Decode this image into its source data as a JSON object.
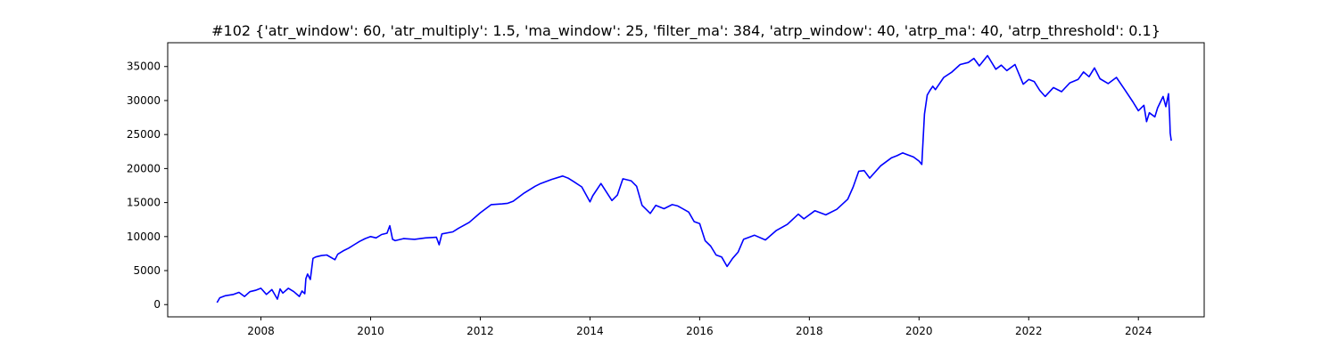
{
  "chart_data": {
    "type": "line",
    "title": "#102 {'atr_window': 60, 'atr_multiply': 1.5, 'ma_window': 25, 'filter_ma': 384, 'atrp_window': 40, 'atrp_ma': 40, 'atrp_threshold': 0.1}",
    "xlabel": "",
    "ylabel": "",
    "xlim": [
      2006.3,
      2025.2
    ],
    "ylim": [
      -1800,
      38500
    ],
    "x_ticks": [
      2008,
      2010,
      2012,
      2014,
      2016,
      2018,
      2020,
      2022,
      2024
    ],
    "y_ticks": [
      0,
      5000,
      10000,
      15000,
      20000,
      25000,
      30000,
      35000
    ],
    "grid": false,
    "legend": "none",
    "line_color": "#0000ff",
    "series": [
      {
        "x": [
          2007.2,
          2007.25,
          2007.35,
          2007.5,
          2007.6,
          2007.7,
          2007.8,
          2007.9,
          2008.0,
          2008.1,
          2008.2,
          2008.3,
          2008.35,
          2008.4,
          2008.5,
          2008.6,
          2008.7,
          2008.75,
          2008.8,
          2008.82,
          2008.85,
          2008.9,
          2008.95,
          2009.0,
          2009.1,
          2009.2,
          2009.35,
          2009.4,
          2009.5,
          2009.6,
          2009.7,
          2009.8,
          2009.9,
          2010.0,
          2010.1,
          2010.2,
          2010.3,
          2010.35,
          2010.4,
          2010.45,
          2010.6,
          2010.8,
          2011.0,
          2011.2,
          2011.25,
          2011.3,
          2011.5,
          2011.6,
          2011.8,
          2012.0,
          2012.2,
          2012.4,
          2012.5,
          2012.6,
          2012.8,
          2013.0,
          2013.1,
          2013.3,
          2013.5,
          2013.6,
          2013.7,
          2013.85,
          2014.0,
          2014.05,
          2014.2,
          2014.4,
          2014.5,
          2014.6,
          2014.75,
          2014.85,
          2014.95,
          2015.1,
          2015.2,
          2015.35,
          2015.5,
          2015.6,
          2015.8,
          2015.9,
          2016.0,
          2016.1,
          2016.2,
          2016.3,
          2016.4,
          2016.5,
          2016.6,
          2016.7,
          2016.8,
          2016.9,
          2017.0,
          2017.2,
          2017.4,
          2017.6,
          2017.8,
          2017.9,
          2018.1,
          2018.3,
          2018.5,
          2018.7,
          2018.8,
          2018.9,
          2019.0,
          2019.1,
          2019.3,
          2019.5,
          2019.6,
          2019.7,
          2019.9,
          2020.0,
          2020.05,
          2020.1,
          2020.15,
          2020.2,
          2020.25,
          2020.3,
          2020.45,
          2020.6,
          2020.75,
          2020.9,
          2021.0,
          2021.1,
          2021.25,
          2021.4,
          2021.5,
          2021.6,
          2021.75,
          2021.9,
          2022.0,
          2022.1,
          2022.2,
          2022.3,
          2022.45,
          2022.6,
          2022.75,
          2022.9,
          2023.0,
          2023.1,
          2023.2,
          2023.3,
          2023.45,
          2023.6,
          2023.75,
          2023.9,
          2024.0,
          2024.1,
          2024.15,
          2024.2,
          2024.3,
          2024.35,
          2024.45,
          2024.5,
          2024.55,
          2024.57,
          2024.58,
          2024.6
        ],
        "y": [
          300,
          1000,
          1300,
          1500,
          1800,
          1200,
          1900,
          2100,
          2400,
          1500,
          2200,
          800,
          2300,
          1700,
          2400,
          1900,
          1200,
          2000,
          1600,
          3800,
          4500,
          3700,
          6800,
          7000,
          7200,
          7300,
          6600,
          7400,
          7900,
          8300,
          8800,
          9300,
          9700,
          10000,
          9800,
          10300,
          10500,
          11600,
          9600,
          9400,
          9700,
          9600,
          9800,
          9900,
          8800,
          10400,
          10700,
          11200,
          12100,
          13500,
          14700,
          14800,
          14900,
          15200,
          16400,
          17400,
          17800,
          18400,
          18900,
          18600,
          18100,
          17300,
          15100,
          16000,
          17800,
          15300,
          16100,
          18500,
          18200,
          17400,
          14600,
          13400,
          14600,
          14100,
          14700,
          14500,
          13600,
          12200,
          11900,
          9400,
          8600,
          7300,
          7000,
          5600,
          6800,
          7700,
          9600,
          9900,
          10200,
          9500,
          10900,
          11800,
          13300,
          12600,
          13800,
          13200,
          14000,
          15500,
          17300,
          19600,
          19700,
          18600,
          20400,
          21600,
          21900,
          22300,
          21700,
          21100,
          20600,
          28000,
          30800,
          31500,
          32100,
          31600,
          33400,
          34200,
          35300,
          35600,
          36200,
          35100,
          36600,
          34600,
          35200,
          34400,
          35300,
          32400,
          33100,
          32800,
          31500,
          30600,
          31900,
          31300,
          32600,
          33100,
          34200,
          33500,
          34800,
          33200,
          32500,
          33400,
          31600,
          29800,
          28500,
          29300,
          26900,
          28200,
          27600,
          28900,
          30600,
          29100,
          31000,
          27500,
          25200,
          24100
        ]
      }
    ]
  }
}
